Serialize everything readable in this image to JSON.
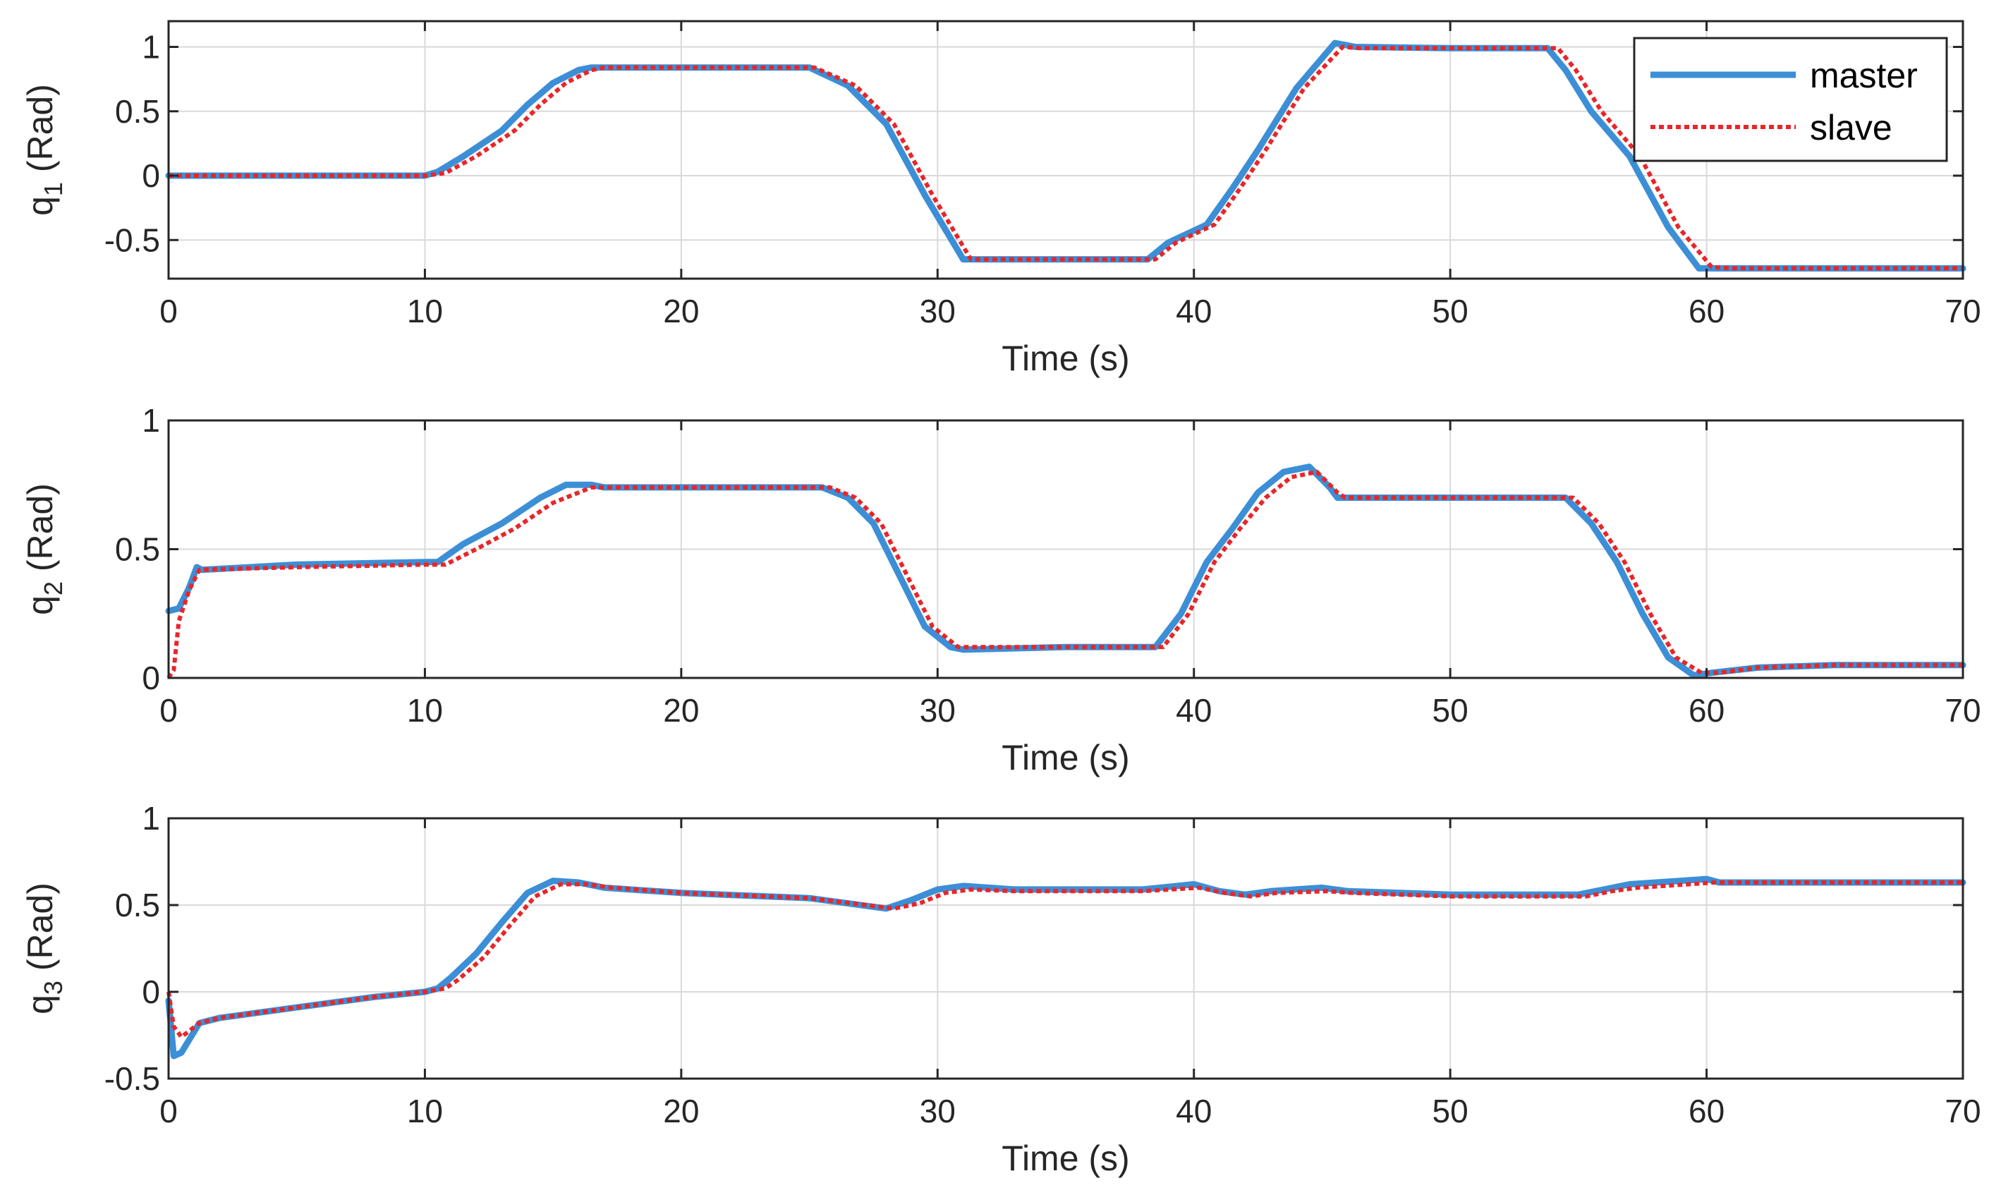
{
  "colors": {
    "master": "#3c8fd6",
    "slave": "#e8262a",
    "axis": "#262626",
    "grid": "#d9d9d9",
    "background": "#ffffff"
  },
  "legend": {
    "entries": [
      "master",
      "slave"
    ],
    "location": "top-right of first subplot"
  },
  "chart_data": [
    {
      "type": "line",
      "title": "",
      "ylabel_base": "q",
      "ylabel_sub": "1",
      "ylabel_unit": " (Rad)",
      "xlabel": "Time (s)",
      "xlim": [
        0,
        70
      ],
      "ylim": [
        -0.8,
        1.2
      ],
      "xticks": [
        0,
        10,
        20,
        30,
        40,
        50,
        60,
        70
      ],
      "yticks": [
        -0.5,
        0,
        0.5,
        1
      ],
      "ytick_labels": [
        "-0.5",
        "0",
        "0.5",
        "1"
      ],
      "grid": true,
      "series": [
        {
          "name": "master",
          "style": "solid",
          "points": [
            [
              0,
              0
            ],
            [
              10,
              0
            ],
            [
              10.5,
              0.03
            ],
            [
              11.5,
              0.15
            ],
            [
              13,
              0.35
            ],
            [
              14,
              0.55
            ],
            [
              15,
              0.72
            ],
            [
              16,
              0.82
            ],
            [
              16.5,
              0.84
            ],
            [
              20,
              0.84
            ],
            [
              25,
              0.84
            ],
            [
              26.5,
              0.7
            ],
            [
              28,
              0.4
            ],
            [
              29.5,
              -0.15
            ],
            [
              31,
              -0.65
            ],
            [
              32,
              -0.65
            ],
            [
              35,
              -0.65
            ],
            [
              38.2,
              -0.65
            ],
            [
              39,
              -0.52
            ],
            [
              40.5,
              -0.38
            ],
            [
              41.5,
              -0.1
            ],
            [
              42.5,
              0.2
            ],
            [
              44,
              0.68
            ],
            [
              45.5,
              1.03
            ],
            [
              46.3,
              1.0
            ],
            [
              50,
              0.99
            ],
            [
              53.8,
              0.99
            ],
            [
              54.5,
              0.82
            ],
            [
              55.5,
              0.5
            ],
            [
              57,
              0.15
            ],
            [
              58.5,
              -0.4
            ],
            [
              59.7,
              -0.72
            ],
            [
              61,
              -0.72
            ],
            [
              65,
              -0.72
            ],
            [
              70,
              -0.72
            ]
          ]
        },
        {
          "name": "slave",
          "style": "dotted",
          "points": [
            [
              0,
              0
            ],
            [
              10,
              0
            ],
            [
              10.8,
              0.02
            ],
            [
              12,
              0.15
            ],
            [
              13.5,
              0.35
            ],
            [
              14.5,
              0.55
            ],
            [
              15.5,
              0.72
            ],
            [
              16.5,
              0.82
            ],
            [
              17,
              0.84
            ],
            [
              20,
              0.84
            ],
            [
              25.2,
              0.84
            ],
            [
              26.8,
              0.7
            ],
            [
              28.3,
              0.4
            ],
            [
              29.8,
              -0.15
            ],
            [
              31.3,
              -0.65
            ],
            [
              32,
              -0.65
            ],
            [
              35,
              -0.65
            ],
            [
              38.5,
              -0.65
            ],
            [
              39.3,
              -0.52
            ],
            [
              40.8,
              -0.38
            ],
            [
              41.8,
              -0.1
            ],
            [
              42.8,
              0.2
            ],
            [
              44.3,
              0.68
            ],
            [
              45.8,
              1.0
            ],
            [
              46.5,
              0.99
            ],
            [
              50,
              0.99
            ],
            [
              54.2,
              0.99
            ],
            [
              54.9,
              0.82
            ],
            [
              55.9,
              0.5
            ],
            [
              57.4,
              0.15
            ],
            [
              58.9,
              -0.4
            ],
            [
              60.2,
              -0.71
            ],
            [
              61,
              -0.72
            ],
            [
              65,
              -0.72
            ],
            [
              70,
              -0.72
            ]
          ]
        }
      ]
    },
    {
      "type": "line",
      "title": "",
      "ylabel_base": "q",
      "ylabel_sub": "2",
      "ylabel_unit": " (Rad)",
      "xlabel": "Time (s)",
      "xlim": [
        0,
        70
      ],
      "ylim": [
        0,
        1
      ],
      "xticks": [
        0,
        10,
        20,
        30,
        40,
        50,
        60,
        70
      ],
      "yticks": [
        0,
        0.5,
        1
      ],
      "ytick_labels": [
        "0",
        "0.5",
        "1"
      ],
      "grid": true,
      "series": [
        {
          "name": "master",
          "style": "solid",
          "points": [
            [
              0,
              0.26
            ],
            [
              0.4,
              0.27
            ],
            [
              0.8,
              0.35
            ],
            [
              1.1,
              0.43
            ],
            [
              1.3,
              0.42
            ],
            [
              5,
              0.44
            ],
            [
              10,
              0.45
            ],
            [
              10.5,
              0.45
            ],
            [
              11.5,
              0.52
            ],
            [
              13,
              0.6
            ],
            [
              14.5,
              0.7
            ],
            [
              15.5,
              0.75
            ],
            [
              16.5,
              0.75
            ],
            [
              17,
              0.74
            ],
            [
              20,
              0.74
            ],
            [
              25.5,
              0.74
            ],
            [
              26.5,
              0.7
            ],
            [
              27.5,
              0.6
            ],
            [
              28.5,
              0.4
            ],
            [
              29.5,
              0.2
            ],
            [
              30.5,
              0.12
            ],
            [
              31,
              0.11
            ],
            [
              35,
              0.12
            ],
            [
              38.5,
              0.12
            ],
            [
              39.5,
              0.25
            ],
            [
              40.5,
              0.45
            ],
            [
              41.5,
              0.58
            ],
            [
              42.5,
              0.72
            ],
            [
              43.5,
              0.8
            ],
            [
              44.5,
              0.82
            ],
            [
              45.3,
              0.74
            ],
            [
              45.6,
              0.7
            ],
            [
              50,
              0.7
            ],
            [
              54.5,
              0.7
            ],
            [
              55.5,
              0.6
            ],
            [
              56.5,
              0.45
            ],
            [
              57.5,
              0.25
            ],
            [
              58.5,
              0.08
            ],
            [
              59.5,
              0.01
            ],
            [
              60.2,
              0.02
            ],
            [
              62,
              0.04
            ],
            [
              65,
              0.05
            ],
            [
              70,
              0.05
            ]
          ]
        },
        {
          "name": "slave",
          "style": "dotted",
          "points": [
            [
              0,
              0
            ],
            [
              0.2,
              0.03
            ],
            [
              0.4,
              0.22
            ],
            [
              0.8,
              0.34
            ],
            [
              1.2,
              0.42
            ],
            [
              5,
              0.43
            ],
            [
              10,
              0.44
            ],
            [
              10.8,
              0.44
            ],
            [
              12,
              0.5
            ],
            [
              13.5,
              0.58
            ],
            [
              15,
              0.68
            ],
            [
              16.5,
              0.74
            ],
            [
              17,
              0.74
            ],
            [
              20,
              0.74
            ],
            [
              25.8,
              0.74
            ],
            [
              26.8,
              0.7
            ],
            [
              27.8,
              0.6
            ],
            [
              28.8,
              0.4
            ],
            [
              29.8,
              0.2
            ],
            [
              30.8,
              0.12
            ],
            [
              31.3,
              0.12
            ],
            [
              35,
              0.12
            ],
            [
              38.8,
              0.12
            ],
            [
              39.8,
              0.25
            ],
            [
              40.8,
              0.45
            ],
            [
              41.8,
              0.58
            ],
            [
              42.8,
              0.7
            ],
            [
              43.8,
              0.78
            ],
            [
              44.8,
              0.8
            ],
            [
              45.6,
              0.72
            ],
            [
              45.9,
              0.7
            ],
            [
              50,
              0.7
            ],
            [
              54.8,
              0.7
            ],
            [
              55.8,
              0.6
            ],
            [
              56.8,
              0.45
            ],
            [
              57.8,
              0.25
            ],
            [
              58.8,
              0.08
            ],
            [
              59.8,
              0.02
            ],
            [
              60.5,
              0.02
            ],
            [
              62,
              0.04
            ],
            [
              65,
              0.05
            ],
            [
              70,
              0.05
            ]
          ]
        }
      ]
    },
    {
      "type": "line",
      "title": "",
      "ylabel_base": "q",
      "ylabel_sub": "3",
      "ylabel_unit": " (Rad)",
      "xlabel": "Time (s)",
      "xlim": [
        0,
        70
      ],
      "ylim": [
        -0.5,
        1
      ],
      "xticks": [
        0,
        10,
        20,
        30,
        40,
        50,
        60,
        70
      ],
      "yticks": [
        -0.5,
        0,
        0.5,
        1
      ],
      "ytick_labels": [
        "-0.5",
        "0",
        "0.5",
        "1"
      ],
      "grid": true,
      "series": [
        {
          "name": "master",
          "style": "solid",
          "points": [
            [
              0,
              -0.05
            ],
            [
              0.2,
              -0.37
            ],
            [
              0.5,
              -0.35
            ],
            [
              1.2,
              -0.18
            ],
            [
              2,
              -0.15
            ],
            [
              5,
              -0.09
            ],
            [
              8,
              -0.03
            ],
            [
              10,
              0
            ],
            [
              10.5,
              0.02
            ],
            [
              11,
              0.08
            ],
            [
              12,
              0.22
            ],
            [
              13,
              0.4
            ],
            [
              14,
              0.57
            ],
            [
              15,
              0.64
            ],
            [
              16,
              0.63
            ],
            [
              17,
              0.6
            ],
            [
              20,
              0.57
            ],
            [
              25,
              0.54
            ],
            [
              28,
              0.48
            ],
            [
              29,
              0.53
            ],
            [
              30,
              0.59
            ],
            [
              31,
              0.61
            ],
            [
              33,
              0.59
            ],
            [
              38,
              0.59
            ],
            [
              40,
              0.62
            ],
            [
              41,
              0.58
            ],
            [
              42,
              0.56
            ],
            [
              43,
              0.58
            ],
            [
              45,
              0.6
            ],
            [
              46,
              0.58
            ],
            [
              50,
              0.56
            ],
            [
              55,
              0.56
            ],
            [
              56,
              0.59
            ],
            [
              57,
              0.62
            ],
            [
              59,
              0.64
            ],
            [
              60,
              0.65
            ],
            [
              60.5,
              0.63
            ],
            [
              70,
              0.63
            ]
          ]
        },
        {
          "name": "slave",
          "style": "dotted",
          "points": [
            [
              0,
              0
            ],
            [
              0.2,
              -0.2
            ],
            [
              0.5,
              -0.26
            ],
            [
              1.2,
              -0.18
            ],
            [
              2,
              -0.15
            ],
            [
              5,
              -0.09
            ],
            [
              8,
              -0.03
            ],
            [
              10,
              0
            ],
            [
              10.8,
              0.02
            ],
            [
              11.3,
              0.07
            ],
            [
              12.3,
              0.2
            ],
            [
              13.3,
              0.38
            ],
            [
              14.3,
              0.55
            ],
            [
              15.3,
              0.62
            ],
            [
              16.3,
              0.62
            ],
            [
              17.3,
              0.6
            ],
            [
              20,
              0.57
            ],
            [
              25,
              0.54
            ],
            [
              28.3,
              0.48
            ],
            [
              29.3,
              0.51
            ],
            [
              30.3,
              0.57
            ],
            [
              31.3,
              0.59
            ],
            [
              33,
              0.58
            ],
            [
              38,
              0.58
            ],
            [
              40.2,
              0.6
            ],
            [
              41.2,
              0.57
            ],
            [
              42.2,
              0.55
            ],
            [
              43.2,
              0.57
            ],
            [
              45.2,
              0.58
            ],
            [
              46.2,
              0.57
            ],
            [
              50,
              0.55
            ],
            [
              55.3,
              0.55
            ],
            [
              56.3,
              0.58
            ],
            [
              57.3,
              0.6
            ],
            [
              59.3,
              0.62
            ],
            [
              60.3,
              0.63
            ],
            [
              70,
              0.63
            ]
          ]
        }
      ]
    }
  ]
}
